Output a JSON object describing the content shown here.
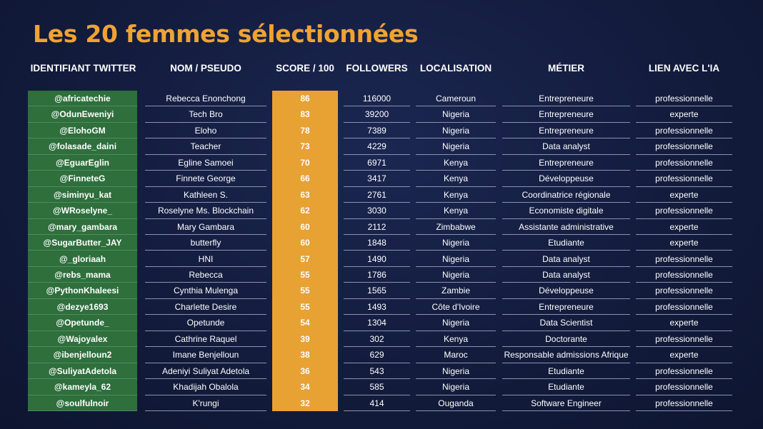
{
  "title": "Les 20 femmes sélectionnées",
  "headers": {
    "handle": "IDENTIFIANT TWITTER",
    "name": "NOM / PSEUDO",
    "score": "SCORE / 100",
    "followers": "FOLLOWERS",
    "location": "LOCALISATION",
    "job": "MÉTIER",
    "link": "LIEN AVEC L'IA"
  },
  "colors": {
    "title": "#f0a332",
    "handle_column": "#2e6f3c",
    "score_column": "#e8a133",
    "background": "#131c3d"
  },
  "rows": [
    {
      "handle": "@africatechie",
      "name": "Rebecca Enonchong",
      "score": "86",
      "followers": "116000",
      "location": "Cameroun",
      "job": "Entrepreneure",
      "link": "professionnelle"
    },
    {
      "handle": "@OdunEweniyi",
      "name": "Tech Bro",
      "score": "83",
      "followers": "39200",
      "location": "Nigeria",
      "job": "Entrepreneure",
      "link": "experte"
    },
    {
      "handle": "@ElohoGM",
      "name": "Eloho",
      "score": "78",
      "followers": "7389",
      "location": "Nigeria",
      "job": "Entrepreneure",
      "link": "professionnelle"
    },
    {
      "handle": "@folasade_daini",
      "name": "Teacher",
      "score": "73",
      "followers": "4229",
      "location": "Nigeria",
      "job": "Data analyst",
      "link": "professionnelle"
    },
    {
      "handle": "@EguarEglin",
      "name": "Egline Samoei",
      "score": "70",
      "followers": "6971",
      "location": "Kenya",
      "job": "Entrepreneure",
      "link": "professionnelle"
    },
    {
      "handle": "@FinneteG",
      "name": "Finnete George",
      "score": "66",
      "followers": "3417",
      "location": "Kenya",
      "job": "Développeuse",
      "link": "professionnelle"
    },
    {
      "handle": "@siminyu_kat",
      "name": "Kathleen S.",
      "score": "63",
      "followers": "2761",
      "location": "Kenya",
      "job": "Coordinatrice régionale",
      "link": "experte"
    },
    {
      "handle": "@WRoselyne_",
      "name": "Roselyne Ms. Blockchain",
      "score": "62",
      "followers": "3030",
      "location": "Kenya",
      "job": "Economiste digitale",
      "link": "professionnelle"
    },
    {
      "handle": "@mary_gambara",
      "name": "Mary Gambara",
      "score": "60",
      "followers": "2112",
      "location": "Zimbabwe",
      "job": "Assistante administrative",
      "link": "experte"
    },
    {
      "handle": "@SugarButter_JAY",
      "name": "butterfly",
      "score": "60",
      "followers": "1848",
      "location": "Nigeria",
      "job": "Etudiante",
      "link": "experte"
    },
    {
      "handle": "@_gloriaah",
      "name": "HNI",
      "score": "57",
      "followers": "1490",
      "location": "Nigeria",
      "job": "Data analyst",
      "link": "professionnelle"
    },
    {
      "handle": "@rebs_mama",
      "name": "Rebecca",
      "score": "55",
      "followers": "1786",
      "location": "Nigeria",
      "job": "Data analyst",
      "link": "professionnelle"
    },
    {
      "handle": "@PythonKhaleesi",
      "name": "Cynthia Mulenga",
      "score": "55",
      "followers": "1565",
      "location": "Zambie",
      "job": "Développeuse",
      "link": "professionnelle"
    },
    {
      "handle": "@dezye1693",
      "name": "Charlette Desire",
      "score": "55",
      "followers": "1493",
      "location": "Côte d'Ivoire",
      "job": "Entrepreneure",
      "link": "professionnelle"
    },
    {
      "handle": "@Opetunde_",
      "name": "Opetunde",
      "score": "54",
      "followers": "1304",
      "location": "Nigeria",
      "job": "Data Scientist",
      "link": "experte"
    },
    {
      "handle": "@Wajoyalex",
      "name": "Cathrine Raquel",
      "score": "39",
      "followers": "302",
      "location": "Kenya",
      "job": "Doctorante",
      "link": "professionnelle"
    },
    {
      "handle": "@ibenjelloun2",
      "name": "Imane Benjelloun",
      "score": "38",
      "followers": "629",
      "location": "Maroc",
      "job": "Responsable admissions Afrique",
      "link": "experte"
    },
    {
      "handle": "@SuliyatAdetola",
      "name": "Adeniyi Suliyat Adetola",
      "score": "36",
      "followers": "543",
      "location": "Nigeria",
      "job": "Etudiante",
      "link": "professionnelle"
    },
    {
      "handle": "@kameyla_62",
      "name": "Khadijah Obalola",
      "score": "34",
      "followers": "585",
      "location": "Nigeria",
      "job": "Etudiante",
      "link": "professionnelle"
    },
    {
      "handle": "@soulfulnoir",
      "name": "K'rungi",
      "score": "32",
      "followers": "414",
      "location": "Ouganda",
      "job": "Software Engineer",
      "link": "professionnelle"
    }
  ]
}
